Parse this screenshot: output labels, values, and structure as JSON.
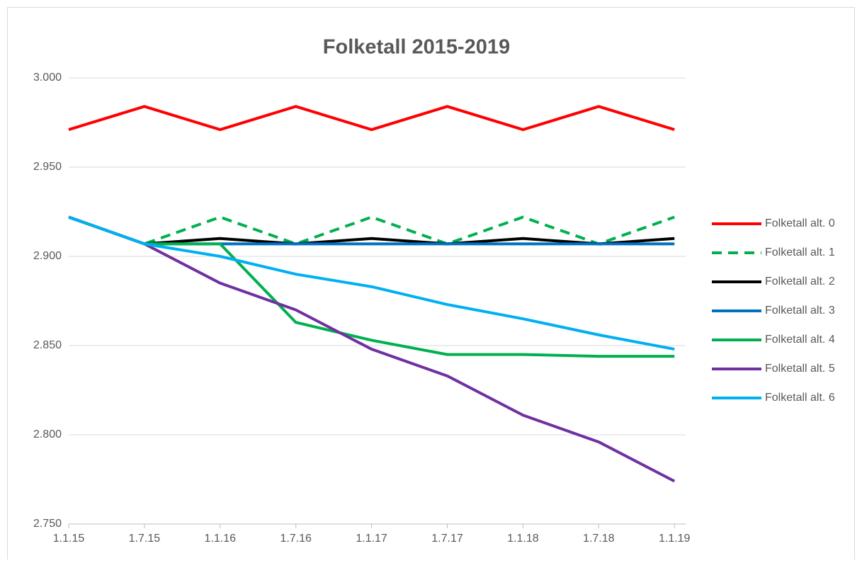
{
  "chart_data": {
    "type": "line",
    "title": "Folketall 2015-2019",
    "categories": [
      "1.1.15",
      "1.7.15",
      "1.1.16",
      "1.7.16",
      "1.1.17",
      "1.7.17",
      "1.1.18",
      "1.7.18",
      "1.1.19"
    ],
    "series": [
      {
        "name": "Folketall alt. 0",
        "color": "#ff0000",
        "values": [
          2971,
          2984,
          2971,
          2984,
          2971,
          2984,
          2971,
          2984,
          2971
        ]
      },
      {
        "name": "Folketall alt. 1",
        "color": "#00b050",
        "dashed": true,
        "values": [
          2922,
          2907,
          2922,
          2907,
          2922,
          2907,
          2922,
          2907,
          2922
        ]
      },
      {
        "name": "Folketall alt. 2",
        "color": "#000000",
        "values": [
          2922,
          2907,
          2910,
          2907,
          2910,
          2907,
          2910,
          2907,
          2910
        ]
      },
      {
        "name": "Folketall alt. 3",
        "color": "#0070c0",
        "values": [
          2922,
          2907,
          2907,
          2907,
          2907,
          2907,
          2907,
          2907,
          2907
        ]
      },
      {
        "name": "Folketall alt. 4",
        "color": "#00b050",
        "values": [
          2922,
          2907,
          2907,
          2863,
          2853,
          2845,
          2845,
          2844,
          2844
        ]
      },
      {
        "name": "Folketall alt. 5",
        "color": "#7030a0",
        "values": [
          2922,
          2907,
          2885,
          2870,
          2848,
          2833,
          2811,
          2796,
          2774
        ]
      },
      {
        "name": "Folketall alt. 6",
        "color": "#00b0f0",
        "values": [
          2922,
          2907,
          2900,
          2890,
          2883,
          2873,
          2865,
          2856,
          2848
        ]
      }
    ],
    "ylim": [
      2750,
      3000
    ],
    "yticks": [
      {
        "value": 2750,
        "label": "2.750"
      },
      {
        "value": 2800,
        "label": "2.800"
      },
      {
        "value": 2850,
        "label": "2.850"
      },
      {
        "value": 2900,
        "label": "2.900"
      },
      {
        "value": 2950,
        "label": "2.950"
      },
      {
        "value": 3000,
        "label": "3.000"
      }
    ],
    "grid": true,
    "legend": "right"
  }
}
